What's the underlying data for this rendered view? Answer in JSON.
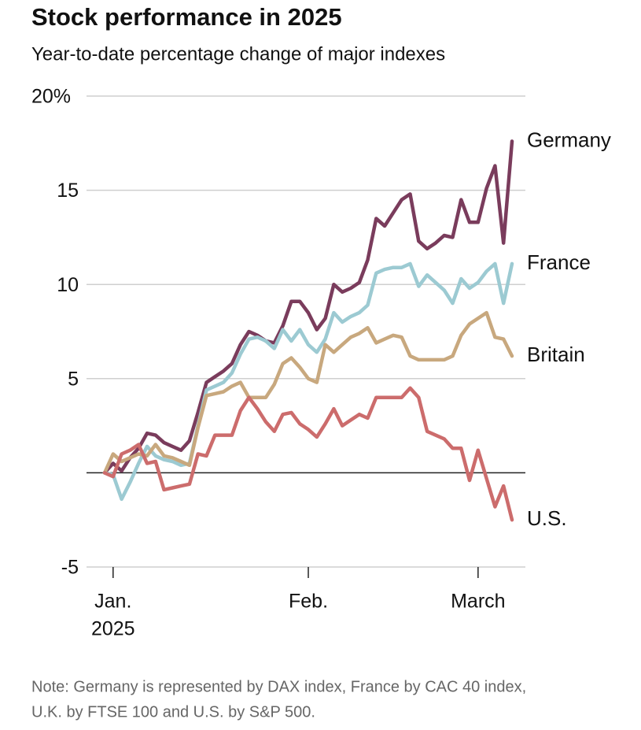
{
  "chart_data": {
    "type": "line",
    "title": "Stock performance in 2025",
    "subtitle": "Year-to-date percentage change of major indexes",
    "note": [
      "Note: Germany is represented by DAX index, France by CAC 40 index,",
      "U.K. by FTSE 100 and U.S. by S&P 500."
    ],
    "categories": [
      null,
      "Jan.",
      null,
      null,
      null,
      null,
      null,
      null,
      null,
      null,
      null,
      null,
      null,
      null,
      null,
      null,
      null,
      null,
      null,
      null,
      null,
      null,
      null,
      null,
      "Feb.",
      null,
      null,
      null,
      null,
      null,
      null,
      null,
      null,
      null,
      null,
      null,
      null,
      null,
      null,
      null,
      null,
      null,
      null,
      null,
      "March",
      null,
      null,
      null,
      null
    ],
    "category_sublabel": "2025",
    "ylim": [
      -5,
      20
    ],
    "yticks": [
      -5,
      5,
      10,
      15,
      {
        "value": 20,
        "label": "20%"
      }
    ],
    "grid": true,
    "series": [
      {
        "name": "Germany",
        "color": "#7a3c5c",
        "values": [
          0,
          0.5,
          0.1,
          0.8,
          1.3,
          2.1,
          2.0,
          1.6,
          1.4,
          1.2,
          1.7,
          3.2,
          4.8,
          5.1,
          5.4,
          5.8,
          6.8,
          7.5,
          7.3,
          7.0,
          6.9,
          7.8,
          9.1,
          9.1,
          8.5,
          7.6,
          8.2,
          10.0,
          9.6,
          9.8,
          10.1,
          11.3,
          13.5,
          13.1,
          13.8,
          14.5,
          14.8,
          12.3,
          11.9,
          12.2,
          12.6,
          12.5,
          14.5,
          13.3,
          13.3,
          15.1,
          16.3,
          12.2,
          17.6
        ]
      },
      {
        "name": "France",
        "color": "#9ccad2",
        "values": [
          0,
          -0.1,
          -1.4,
          -0.5,
          0.5,
          1.4,
          0.9,
          0.7,
          0.6,
          0.4,
          0.5,
          2.5,
          4.4,
          4.6,
          4.8,
          5.3,
          6.3,
          7.1,
          7.2,
          7.0,
          6.6,
          7.6,
          7.0,
          7.6,
          6.8,
          6.4,
          7.1,
          8.5,
          8.0,
          8.3,
          8.5,
          8.9,
          10.6,
          10.8,
          10.9,
          10.9,
          11.1,
          9.9,
          10.5,
          10.1,
          9.7,
          9.0,
          10.3,
          9.8,
          10.1,
          10.7,
          11.1,
          9.0,
          11.1
        ]
      },
      {
        "name": "Britain",
        "color": "#c8a87e",
        "values": [
          0,
          1.0,
          0.6,
          0.8,
          1.0,
          0.9,
          1.5,
          0.9,
          0.8,
          0.6,
          0.4,
          2.4,
          4.1,
          4.2,
          4.3,
          4.6,
          4.8,
          4.0,
          4.0,
          4.0,
          4.7,
          5.8,
          6.1,
          5.6,
          5.0,
          4.8,
          6.8,
          6.4,
          6.8,
          7.2,
          7.4,
          7.7,
          6.9,
          7.1,
          7.3,
          7.2,
          6.2,
          6.0,
          6.0,
          6.0,
          6.0,
          6.2,
          7.3,
          7.9,
          8.2,
          8.5,
          7.2,
          7.1,
          6.2
        ]
      },
      {
        "name": "U.S.",
        "color": "#cc6c6c",
        "values": [
          0,
          -0.2,
          1.0,
          1.2,
          1.5,
          0.5,
          0.6,
          -0.9,
          -0.8,
          -0.7,
          -0.6,
          1.0,
          0.9,
          2.0,
          2.0,
          2.0,
          3.3,
          4.0,
          3.4,
          2.7,
          2.2,
          3.1,
          3.2,
          2.6,
          2.3,
          1.9,
          2.6,
          3.4,
          2.5,
          2.8,
          3.1,
          2.9,
          4.0,
          4.0,
          4.0,
          4.0,
          4.5,
          4.0,
          2.2,
          2.0,
          1.8,
          1.3,
          1.3,
          -0.4,
          1.2,
          -0.3,
          -1.8,
          -0.7,
          -2.5
        ]
      }
    ]
  }
}
